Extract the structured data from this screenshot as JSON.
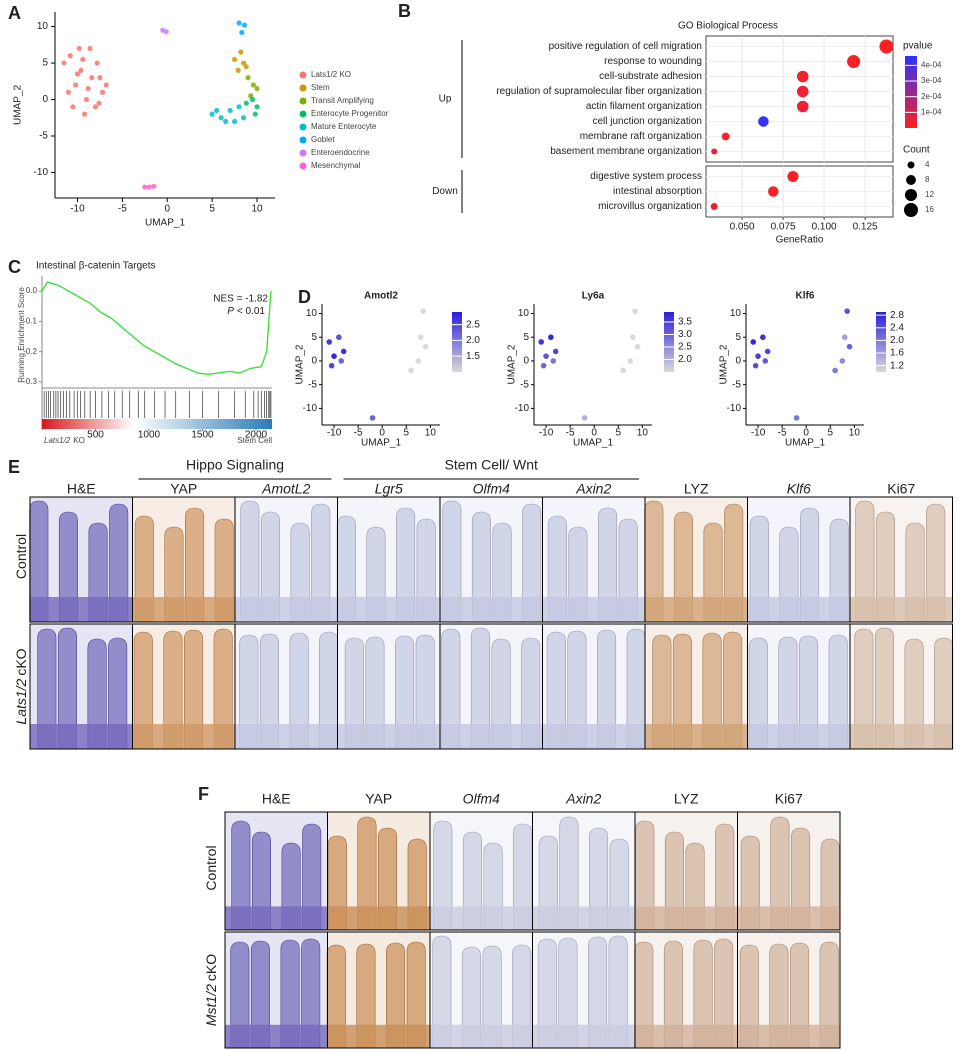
{
  "panel_labels": [
    "A",
    "B",
    "C",
    "D",
    "E",
    "F"
  ],
  "chart_data": [
    {
      "type": "scatter",
      "xlabel": "UMAP_1",
      "ylabel": "UMAP_2",
      "xlim": [
        -12.5,
        12
      ],
      "ylim": [
        -13.5,
        12
      ],
      "xticks": [
        -10,
        -5,
        0,
        5,
        10
      ],
      "yticks": [
        -10,
        -5,
        0,
        5,
        10
      ],
      "series": [
        {
          "name": "Lats1/2 KO",
          "color": "#F8766D",
          "x": [
            -11.5,
            -10.8,
            -10.2,
            -9.6,
            -9,
            -8.4,
            -7.8,
            -7.2,
            -10.5,
            -9.2,
            -8,
            -11,
            -9.8,
            -8.6,
            -7.5,
            -10,
            -8.8,
            -7.6,
            -6.8,
            -9.4
          ],
          "y": [
            5,
            6,
            2,
            4,
            0,
            3,
            5,
            1,
            -1,
            -2,
            -1,
            1,
            7,
            7,
            3,
            3.5,
            1.5,
            -0.5,
            2,
            5.5
          ]
        },
        {
          "name": "Stem",
          "color": "#CD9600",
          "x": [
            7.5,
            8.2,
            8.8,
            7.9,
            8.5
          ],
          "y": [
            5.5,
            6.5,
            4.5,
            4,
            5
          ]
        },
        {
          "name": "Transit Amplifying",
          "color": "#7CAE00",
          "x": [
            9,
            9.6,
            10,
            9.3
          ],
          "y": [
            3,
            2,
            1.5,
            0.5
          ]
        },
        {
          "name": "Enterocyte Progenitor",
          "color": "#00BE67",
          "x": [
            9.5,
            10,
            8.8,
            9.8
          ],
          "y": [
            0,
            -1,
            -0.5,
            -2
          ]
        },
        {
          "name": "Mature Enterocyte",
          "color": "#00BFC4",
          "x": [
            5,
            6,
            7,
            8,
            6.5,
            7.5,
            8.5,
            5.5
          ],
          "y": [
            -2,
            -2.5,
            -1.5,
            -1,
            -3,
            -3,
            -2.5,
            -1.5
          ]
        },
        {
          "name": "Goblet",
          "color": "#00A9FF",
          "x": [
            8,
            8.6,
            8.3
          ],
          "y": [
            10.5,
            10.2,
            9.2
          ]
        },
        {
          "name": "Enteroendocrine",
          "color": "#C77CFF",
          "x": [
            -0.5,
            -0.1
          ],
          "y": [
            9.5,
            9.3
          ]
        },
        {
          "name": "Mesenchymal",
          "color": "#FF61CC",
          "x": [
            -2.5,
            -2,
            -1.5
          ],
          "y": [
            -12,
            -12,
            -11.9
          ]
        }
      ]
    },
    {
      "type": "dot",
      "title": "GO Biological Process",
      "xlabel": "GeneRatio",
      "xlim": [
        0.028,
        0.142
      ],
      "xticks": [
        {
          "value": 0.05,
          "label": "0.050"
        },
        {
          "value": 0.075,
          "label": "0.075"
        },
        {
          "value": 0.1,
          "label": "0.100"
        },
        {
          "value": 0.125,
          "label": "0.125"
        }
      ],
      "groups": [
        {
          "name": "Up",
          "categories": [
            "positive regulation of cell migration",
            "response to wounding",
            "cell-substrate adhesion",
            "regulation of supramolecular fiber organization",
            "actin filament organization",
            "cell junction organization",
            "membrane raft organization",
            "basement membrane organization"
          ],
          "values": [
            0.138,
            0.118,
            0.087,
            0.087,
            0.087,
            0.063,
            0.04,
            0.033
          ],
          "counts": [
            16,
            14,
            11,
            11,
            11,
            9,
            5,
            3
          ],
          "pvalues": [
            2e-06,
            1e-05,
            3e-05,
            4e-05,
            5e-05,
            0.00045,
            2e-05,
            5e-05
          ]
        },
        {
          "name": "Down",
          "categories": [
            "digestive system process",
            "intestinal absorption",
            "microvillus organization"
          ],
          "values": [
            0.081,
            0.069,
            0.033
          ],
          "counts": [
            10,
            9,
            4
          ],
          "pvalues": [
            1e-05,
            2e-05,
            3e-05
          ]
        }
      ],
      "color_title": "pvalue",
      "color_lim": [
        0,
        0.00046
      ],
      "colors": [
        "#FF2020",
        "#3030FF"
      ],
      "color_ticks": [
        {
          "value": 0.0001,
          "label": "1e-04"
        },
        {
          "value": 0.0002,
          "label": "2e-04"
        },
        {
          "value": 0.0003,
          "label": "3e-04"
        },
        {
          "value": 0.0004,
          "label": "4e-04"
        }
      ],
      "size_title": "Count",
      "size_ticks": [
        4,
        8,
        12,
        16
      ]
    },
    {
      "type": "line",
      "title": "Intestinal β-catenin Targets",
      "ylabel": "Running Enrichment Score",
      "color": "#33DD33",
      "x": [
        0,
        50,
        150,
        250,
        350,
        450,
        550,
        650,
        750,
        850,
        950,
        1050,
        1150,
        1250,
        1350,
        1450,
        1550,
        1650,
        1750,
        1850,
        1950,
        2050,
        2100,
        2140
      ],
      "values": [
        0.0,
        0.03,
        0.02,
        0.0,
        -0.02,
        -0.04,
        -0.07,
        -0.09,
        -0.12,
        -0.15,
        -0.18,
        -0.2,
        -0.22,
        -0.24,
        -0.255,
        -0.27,
        -0.275,
        -0.27,
        -0.265,
        -0.27,
        -0.255,
        -0.25,
        -0.2,
        0.0
      ],
      "xlim": [
        0,
        2150
      ],
      "ylim": [
        -0.32,
        0.05
      ],
      "yticks": [
        {
          "value": 0,
          "label": "0.0"
        },
        {
          "value": -0.1,
          "label": "-0.1"
        },
        {
          "value": -0.2,
          "label": "-0.2"
        },
        {
          "value": -0.3,
          "label": "-0.3"
        }
      ],
      "xticks": [
        500,
        1000,
        1500,
        2000
      ],
      "hits": [
        20,
        40,
        60,
        80,
        110,
        130,
        150,
        175,
        200,
        230,
        260,
        300,
        330,
        360,
        400,
        450,
        500,
        560,
        620,
        680,
        750,
        820,
        900,
        960,
        1050,
        1150,
        1250,
        1380,
        1500,
        1650,
        1800,
        1900,
        1980,
        2020,
        2050,
        2080,
        2100,
        2120,
        2130,
        2140
      ],
      "nes": "NES = -1.82",
      "pvalue_label": {
        "italic": "P",
        "text": "< 0.01"
      },
      "left_label": {
        "italic": "Lats1/2",
        "text": "KO"
      },
      "right_label": "Stem Cell"
    },
    {
      "type": "feature",
      "title": "Amotl2",
      "xlabel": "UMAP_1",
      "ylabel": "UMAP_2",
      "xlim": [
        -12.5,
        12
      ],
      "ylim": [
        -13.5,
        12
      ],
      "xticks": [
        -10,
        -5,
        0,
        5,
        10
      ],
      "yticks": [
        -10,
        -5,
        0,
        5,
        10
      ],
      "x": [
        -11,
        -10,
        -9,
        -8,
        -10.5,
        -8.5,
        6,
        7.5,
        9,
        8,
        8.5,
        -2
      ],
      "y": [
        4,
        1,
        5,
        2,
        -1,
        0,
        -2,
        0,
        3,
        5,
        10.5,
        -12
      ],
      "values": [
        2.6,
        2.8,
        2.4,
        2.7,
        2.5,
        2.2,
        1.0,
        1.0,
        1.0,
        1.0,
        1.0,
        2.2
      ],
      "color_lim": [
        1.0,
        2.9
      ],
      "colors": [
        "#D9D9D9",
        "#2A1FD9"
      ],
      "color_ticks": [
        1.5,
        {
          "value": 2,
          "label": "2.0"
        },
        2.5
      ]
    },
    {
      "type": "feature",
      "title": "Ly6a",
      "xlabel": "UMAP_1",
      "ylabel": "UMAP_2",
      "xlim": [
        -12.5,
        12
      ],
      "ylim": [
        -13.5,
        12
      ],
      "xticks": [
        -10,
        -5,
        0,
        5,
        10
      ],
      "yticks": [
        -10,
        -5,
        0,
        5,
        10
      ],
      "x": [
        -11,
        -10,
        -9,
        -8,
        -10.5,
        -8.5,
        6,
        7.5,
        9,
        8,
        8.5,
        -2
      ],
      "y": [
        4,
        1,
        5,
        2,
        -1,
        0,
        -2,
        0,
        3,
        5,
        10.5,
        -12
      ],
      "values": [
        3.6,
        3.2,
        3.8,
        3.4,
        3.0,
        2.8,
        1.5,
        1.5,
        1.5,
        1.5,
        1.5,
        2.0
      ],
      "color_lim": [
        1.5,
        3.9
      ],
      "colors": [
        "#D9D9D9",
        "#2A1FD9"
      ],
      "color_ticks": [
        {
          "value": 2,
          "label": "2.0"
        },
        2.5,
        {
          "value": 3,
          "label": "3.0"
        },
        3.5
      ]
    },
    {
      "type": "feature",
      "title": "Klf6",
      "xlabel": "UMAP_1",
      "ylabel": "UMAP_2",
      "xlim": [
        -12.5,
        12
      ],
      "ylim": [
        -13.5,
        12
      ],
      "xticks": [
        -10,
        -5,
        0,
        5,
        10
      ],
      "yticks": [
        -10,
        -5,
        0,
        5,
        10
      ],
      "x": [
        -11,
        -10,
        -9,
        -8,
        -10.5,
        -8.5,
        6,
        7.5,
        9,
        8,
        8.5,
        -2
      ],
      "y": [
        4,
        1,
        5,
        2,
        -1,
        0,
        -2,
        0,
        3,
        5,
        10.5,
        -12
      ],
      "values": [
        2.8,
        2.6,
        2.7,
        2.5,
        2.4,
        2.3,
        2.0,
        1.8,
        2.2,
        1.6,
        2.4,
        2.0
      ],
      "color_lim": [
        1.0,
        2.9
      ],
      "colors": [
        "#D9D9D9",
        "#2A1FD9"
      ],
      "color_ticks": [
        1.2,
        1.6,
        {
          "value": 2,
          "label": "2.0"
        },
        2.4,
        2.8
      ]
    }
  ],
  "histology": [
    {
      "columns": [
        {
          "label": "H&E",
          "italic": false,
          "color": "#5B4FB0"
        },
        {
          "label": "YAP",
          "italic": false,
          "color": "#C8864A"
        },
        {
          "label": "AmotL2",
          "italic": true,
          "color": "#B8BEDC"
        },
        {
          "label": "Lgr5",
          "italic": true,
          "color": "#B8BEDC"
        },
        {
          "label": "Olfm4",
          "italic": true,
          "color": "#B8BEDC"
        },
        {
          "label": "Axin2",
          "italic": true,
          "color": "#B8BEDC"
        },
        {
          "label": "LYZ",
          "italic": false,
          "color": "#C9915E"
        },
        {
          "label": "Klf6",
          "italic": true,
          "color": "#B8BEDC"
        },
        {
          "label": "Ki67",
          "italic": false,
          "color": "#CFB29A"
        }
      ],
      "groups": [
        {
          "name": "Hippo Signaling",
          "first": 1,
          "last": 2
        },
        {
          "name": "Stem Cell/ Wnt",
          "first": 3,
          "last": 5
        }
      ],
      "rows": [
        {
          "label": "Control"
        },
        {
          "italic": "Lats1/2",
          "label": "cKO"
        }
      ]
    },
    {
      "columns": [
        {
          "label": "H&E",
          "italic": false,
          "color": "#5B4FB0"
        },
        {
          "label": "YAP",
          "italic": false,
          "color": "#C07A3A"
        },
        {
          "label": "Olfm4",
          "italic": true,
          "color": "#BFC3DA"
        },
        {
          "label": "Axin2",
          "italic": true,
          "color": "#BFC3DA"
        },
        {
          "label": "LYZ",
          "italic": false,
          "color": "#C9A488"
        },
        {
          "label": "Ki67",
          "italic": false,
          "color": "#C9A488"
        }
      ],
      "groups": [],
      "rows": [
        {
          "label": "Control"
        },
        {
          "italic": "Mst1/2",
          "label": "cKO"
        }
      ]
    }
  ]
}
